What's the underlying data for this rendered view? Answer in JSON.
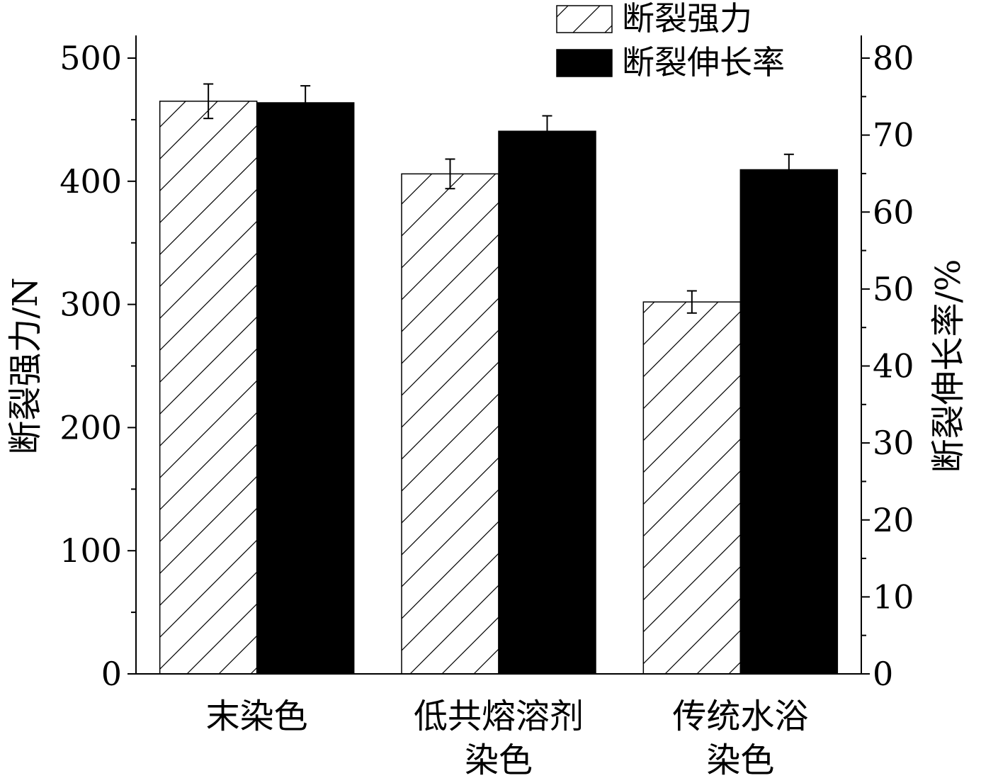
{
  "chart_data": {
    "type": "bar",
    "categories": [
      [
        "末染色"
      ],
      [
        "低共熔溶剂",
        "染色"
      ],
      [
        "传统水浴",
        "染色"
      ]
    ],
    "series": [
      {
        "name": "断裂强力",
        "axis": "left",
        "pattern": "hatched",
        "values": [
          465,
          406,
          302
        ],
        "errors": [
          14,
          12,
          9
        ]
      },
      {
        "name": "断裂伸长率",
        "axis": "right",
        "pattern": "solid",
        "values": [
          74.2,
          70.5,
          65.5
        ],
        "errors": [
          2.2,
          2.0,
          2.0
        ]
      }
    ],
    "ylabel": "断裂强力/N",
    "ylim": [
      0,
      500
    ],
    "yticks": [
      "0",
      "100",
      "200",
      "300",
      "400",
      "500"
    ],
    "y2label": "断裂伸长率/%",
    "y2lim": [
      0,
      80
    ],
    "y2ticks": [
      "0",
      "10",
      "20",
      "30",
      "40",
      "50",
      "60",
      "70",
      "80"
    ],
    "grid": false,
    "legend": "top-right",
    "colors": {
      "solid": "#000000",
      "hatch": "#000000",
      "background": "#ffffff"
    }
  }
}
